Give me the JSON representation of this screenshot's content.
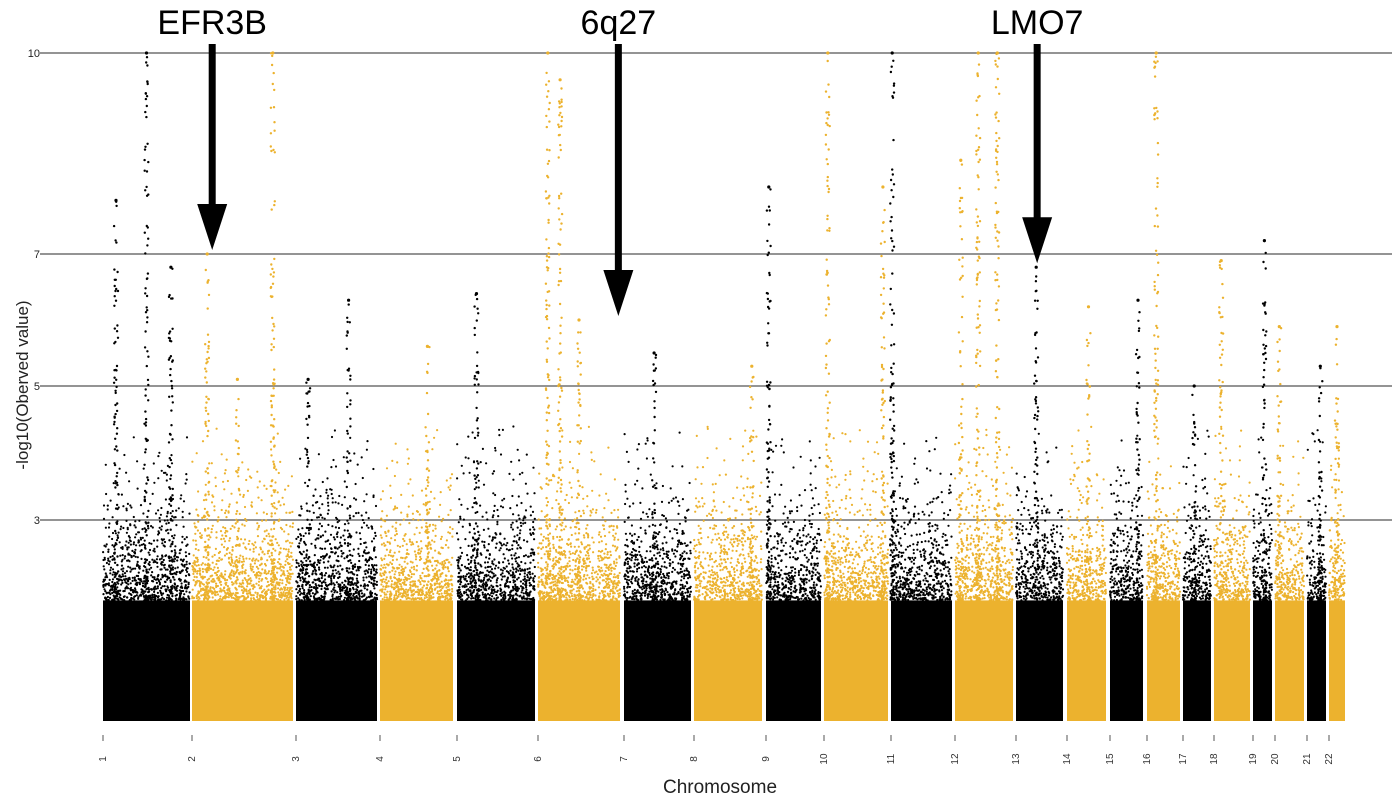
{
  "chart_data": {
    "type": "scatter",
    "title": "",
    "xlabel": "Chromosome",
    "ylabel": "-log10(Oberved value)",
    "ylim": [
      0,
      10
    ],
    "y_axis_scale": "piecewise (compressed above 7)",
    "y_ticks": [
      "3",
      "5",
      "7",
      "10"
    ],
    "threshold_lines": [
      3,
      5,
      7,
      10
    ],
    "colors": {
      "dark": "#000000",
      "light": "#ecb22e"
    },
    "chromosomes": [
      {
        "label": "1",
        "color": "dark",
        "peaks": [
          {
            "at": 0.5,
            "value": 10
          },
          {
            "at": 0.78,
            "value": 6.8
          },
          {
            "at": 0.15,
            "value": 7.8
          }
        ]
      },
      {
        "label": "2",
        "color": "light",
        "peaks": [
          {
            "at": 0.15,
            "value": 7.0
          },
          {
            "at": 0.8,
            "value": 10
          },
          {
            "at": 0.45,
            "value": 5.1
          }
        ]
      },
      {
        "label": "3",
        "color": "dark",
        "peaks": [
          {
            "at": 0.15,
            "value": 5.1
          },
          {
            "at": 0.65,
            "value": 6.3
          }
        ]
      },
      {
        "label": "4",
        "color": "light",
        "peaks": [
          {
            "at": 0.65,
            "value": 5.6
          }
        ]
      },
      {
        "label": "5",
        "color": "dark",
        "peaks": [
          {
            "at": 0.25,
            "value": 6.4
          }
        ]
      },
      {
        "label": "6",
        "color": "light",
        "peaks": [
          {
            "at": 0.12,
            "value": 10
          },
          {
            "at": 0.27,
            "value": 9.6
          },
          {
            "at": 0.5,
            "value": 6.0
          }
        ]
      },
      {
        "label": "7",
        "color": "dark",
        "peaks": [
          {
            "at": 0.45,
            "value": 5.5
          }
        ]
      },
      {
        "label": "8",
        "color": "light",
        "peaks": [
          {
            "at": 0.85,
            "value": 5.3
          }
        ]
      },
      {
        "label": "9",
        "color": "dark",
        "peaks": [
          {
            "at": 0.05,
            "value": 8.0
          }
        ]
      },
      {
        "label": "10",
        "color": "light",
        "peaks": [
          {
            "at": 0.06,
            "value": 10
          },
          {
            "at": 0.92,
            "value": 8.0
          }
        ]
      },
      {
        "label": "11",
        "color": "dark",
        "peaks": [
          {
            "at": 0.02,
            "value": 10
          }
        ]
      },
      {
        "label": "12",
        "color": "light",
        "peaks": [
          {
            "at": 0.1,
            "value": 8.4
          },
          {
            "at": 0.4,
            "value": 10
          },
          {
            "at": 0.73,
            "value": 10
          }
        ]
      },
      {
        "label": "13",
        "color": "dark",
        "peaks": [
          {
            "at": 0.43,
            "value": 6.8
          }
        ]
      },
      {
        "label": "14",
        "color": "light",
        "peaks": [
          {
            "at": 0.55,
            "value": 6.2
          }
        ]
      },
      {
        "label": "15",
        "color": "dark",
        "peaks": [
          {
            "at": 0.85,
            "value": 6.3
          }
        ]
      },
      {
        "label": "16",
        "color": "light",
        "peaks": [
          {
            "at": 0.28,
            "value": 10
          }
        ]
      },
      {
        "label": "17",
        "color": "dark",
        "peaks": [
          {
            "at": 0.4,
            "value": 5.0
          }
        ]
      },
      {
        "label": "18",
        "color": "light",
        "peaks": [
          {
            "at": 0.2,
            "value": 6.9
          }
        ]
      },
      {
        "label": "19",
        "color": "dark",
        "peaks": [
          {
            "at": 0.6,
            "value": 7.2
          }
        ]
      },
      {
        "label": "20",
        "color": "light",
        "peaks": [
          {
            "at": 0.15,
            "value": 5.9
          }
        ]
      },
      {
        "label": "21",
        "color": "dark",
        "peaks": [
          {
            "at": 0.7,
            "value": 5.3
          }
        ]
      },
      {
        "label": "22",
        "color": "light",
        "peaks": [
          {
            "at": 0.5,
            "value": 5.9
          }
        ]
      }
    ],
    "annotations": [
      {
        "label": "EFR3B",
        "chromosome": "2",
        "at": 0.2,
        "value": 7.0
      },
      {
        "label": "6q27",
        "chromosome": "6",
        "at": 0.98,
        "value": 6.0
      },
      {
        "label": "LMO7",
        "chromosome": "13",
        "at": 0.45,
        "value": 6.8
      }
    ]
  }
}
